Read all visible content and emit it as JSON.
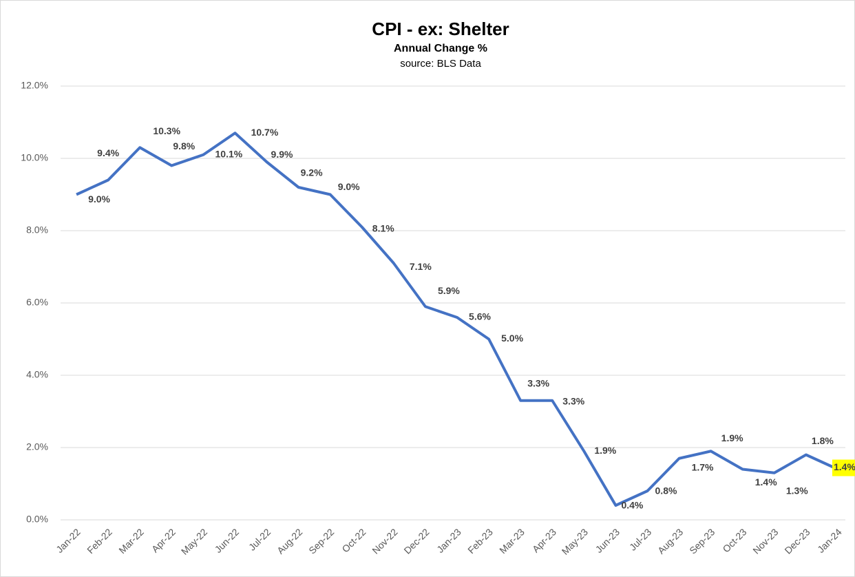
{
  "chart_data": {
    "type": "line",
    "title": "CPI - ex: Shelter",
    "subtitle": "Annual Change %",
    "source": "source: BLS Data",
    "categories": [
      "Jan-22",
      "Feb-22",
      "Mar-22",
      "Apr-22",
      "May-22",
      "Jun-22",
      "Jul-22",
      "Aug-22",
      "Sep-22",
      "Oct-22",
      "Nov-22",
      "Dec-22",
      "Jan-23",
      "Feb-23",
      "Mar-23",
      "Apr-23",
      "May-23",
      "Jun-23",
      "Jul-23",
      "Aug-23",
      "Sep-23",
      "Oct-23",
      "Nov-23",
      "Dec-23",
      "Jan-24"
    ],
    "series": [
      {
        "name": "CPI - ex: Shelter",
        "color": "#4472c4",
        "values": [
          9.0,
          9.4,
          10.3,
          9.8,
          10.1,
          10.7,
          9.9,
          9.2,
          9.0,
          8.1,
          7.1,
          5.9,
          5.6,
          5.0,
          3.3,
          3.3,
          1.9,
          0.4,
          0.8,
          1.7,
          1.9,
          1.4,
          1.3,
          1.8,
          1.4
        ],
        "value_labels": [
          "9.0%",
          "9.4%",
          "10.3%",
          "9.8%",
          "10.1%",
          "10.7%",
          "9.9%",
          "9.2%",
          "9.0%",
          "8.1%",
          "7.1%",
          "5.9%",
          "5.6%",
          "5.0%",
          "3.3%",
          "3.3%",
          "1.9%",
          "0.4%",
          "0.8%",
          "1.7%",
          "1.9%",
          "1.4%",
          "1.3%",
          "1.8%",
          "1.4%"
        ]
      }
    ],
    "ylim": [
      0,
      12
    ],
    "yticks": [
      {
        "value": 0,
        "label": "0.0%"
      },
      {
        "value": 2,
        "label": "2.0%"
      },
      {
        "value": 4,
        "label": "4.0%"
      },
      {
        "value": 6,
        "label": "6.0%"
      },
      {
        "value": 8,
        "label": "8.0%"
      },
      {
        "value": 10,
        "label": "10.0%"
      },
      {
        "value": 12,
        "label": "12.0%"
      }
    ],
    "grid": true
  }
}
